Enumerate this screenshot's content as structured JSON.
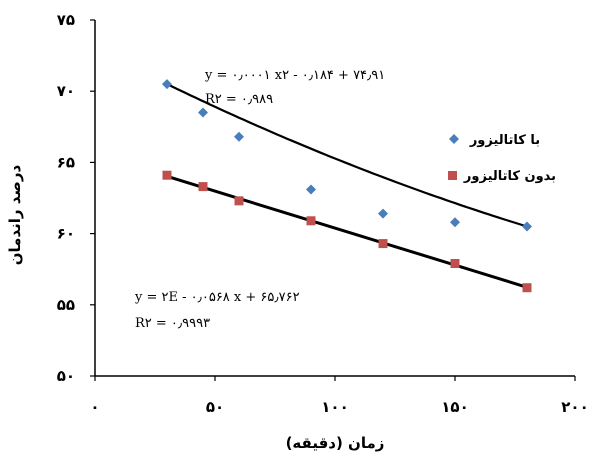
{
  "chart_data": {
    "type": "scatter",
    "xlabel": "زمان (دقیقه)",
    "ylabel": "درصد راندمان",
    "xlim": [
      0,
      200
    ],
    "ylim": [
      50,
      75
    ],
    "x_ticks": [
      0,
      50,
      100,
      150,
      200
    ],
    "y_ticks": [
      50,
      55,
      60,
      65,
      70,
      75
    ],
    "x_tick_labels": [
      "۰",
      "۵۰",
      "۱۰۰",
      "۱۵۰",
      "۲۰۰"
    ],
    "y_tick_labels": [
      "۵۰",
      "۵۵",
      "۶۰",
      "۶۵",
      "۷۰",
      "۷۵"
    ],
    "grid": false,
    "legend_position": "right",
    "series": [
      {
        "name": "با کاتالیزور",
        "marker": "diamond",
        "color": "#4a7ebb",
        "x": [
          30,
          45,
          60,
          90,
          120,
          150,
          180
        ],
        "y": [
          70.5,
          68.5,
          66.8,
          63.1,
          61.4,
          60.8,
          60.5
        ],
        "trendline": {
          "kind": "polynomial",
          "coefficients": [
            0.0001,
            -0.184,
            74.91
          ],
          "equation": "y = ۰٫۰۰۰۱ x۲ - ۰٫۱۸۴ + ۷۴٫۹۱",
          "r2": "R۲ = ۰٫۹۸۹"
        }
      },
      {
        "name": "بدون کاتالیزور",
        "marker": "square",
        "color": "#c0504d",
        "x": [
          30,
          45,
          60,
          90,
          120,
          150,
          180
        ],
        "y": [
          64.1,
          63.3,
          62.3,
          60.9,
          59.3,
          57.9,
          56.2
        ],
        "trendline": {
          "kind": "linear",
          "slope": -0.0568,
          "intercept": 65.762,
          "equation": "y = ۲E - ۰٫۰۵۶۸ x + ۶۵٫۷۶۲",
          "r2": "R۲ = ۰٫۹۹۹۳"
        }
      }
    ]
  }
}
